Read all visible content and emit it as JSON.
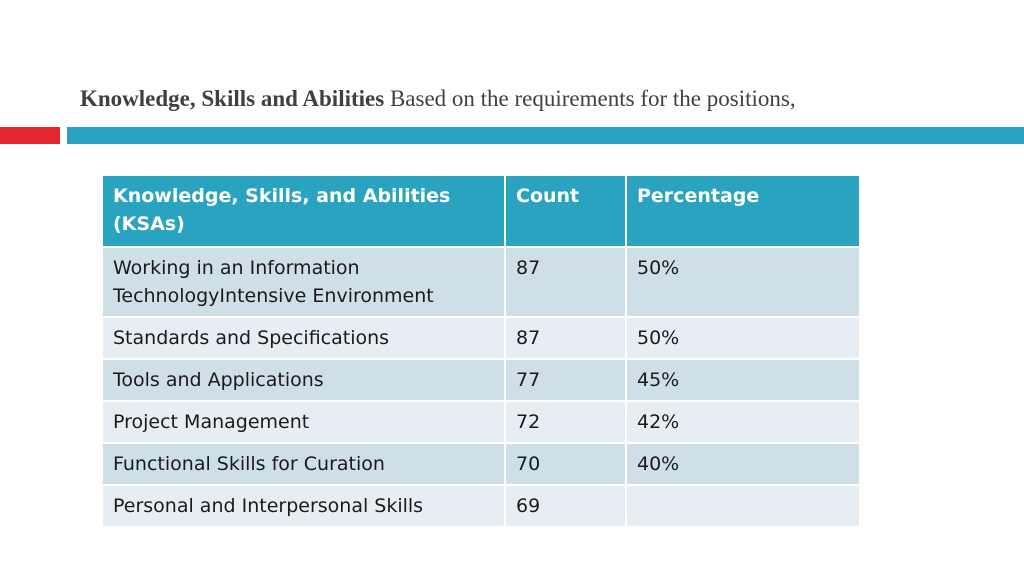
{
  "slide": {
    "title_bold": "Knowledge, Skills and Abilities",
    "title_rest": " Based on the requirements for the positions,"
  },
  "colors": {
    "accent_red": "#e4262e",
    "accent_teal": "#2aa3c1",
    "row_dark": "#cfdfe8",
    "row_light": "#e7eef3"
  },
  "table": {
    "headers": [
      "Knowledge, Skills, and Abilities (KSAs)",
      "Count",
      "Percentage"
    ],
    "rows": [
      [
        "Working in an Information TechnologyIntensive Environment",
        "87",
        "50%"
      ],
      [
        "Standards and Specifications",
        "87",
        "50%"
      ],
      [
        "Tools and Applications",
        "77",
        "45%"
      ],
      [
        "Project Management",
        "72",
        "42%"
      ],
      [
        "Functional Skills for Curation",
        "70",
        "40%"
      ],
      [
        "Personal and Interpersonal Skills",
        "69",
        ""
      ]
    ]
  }
}
